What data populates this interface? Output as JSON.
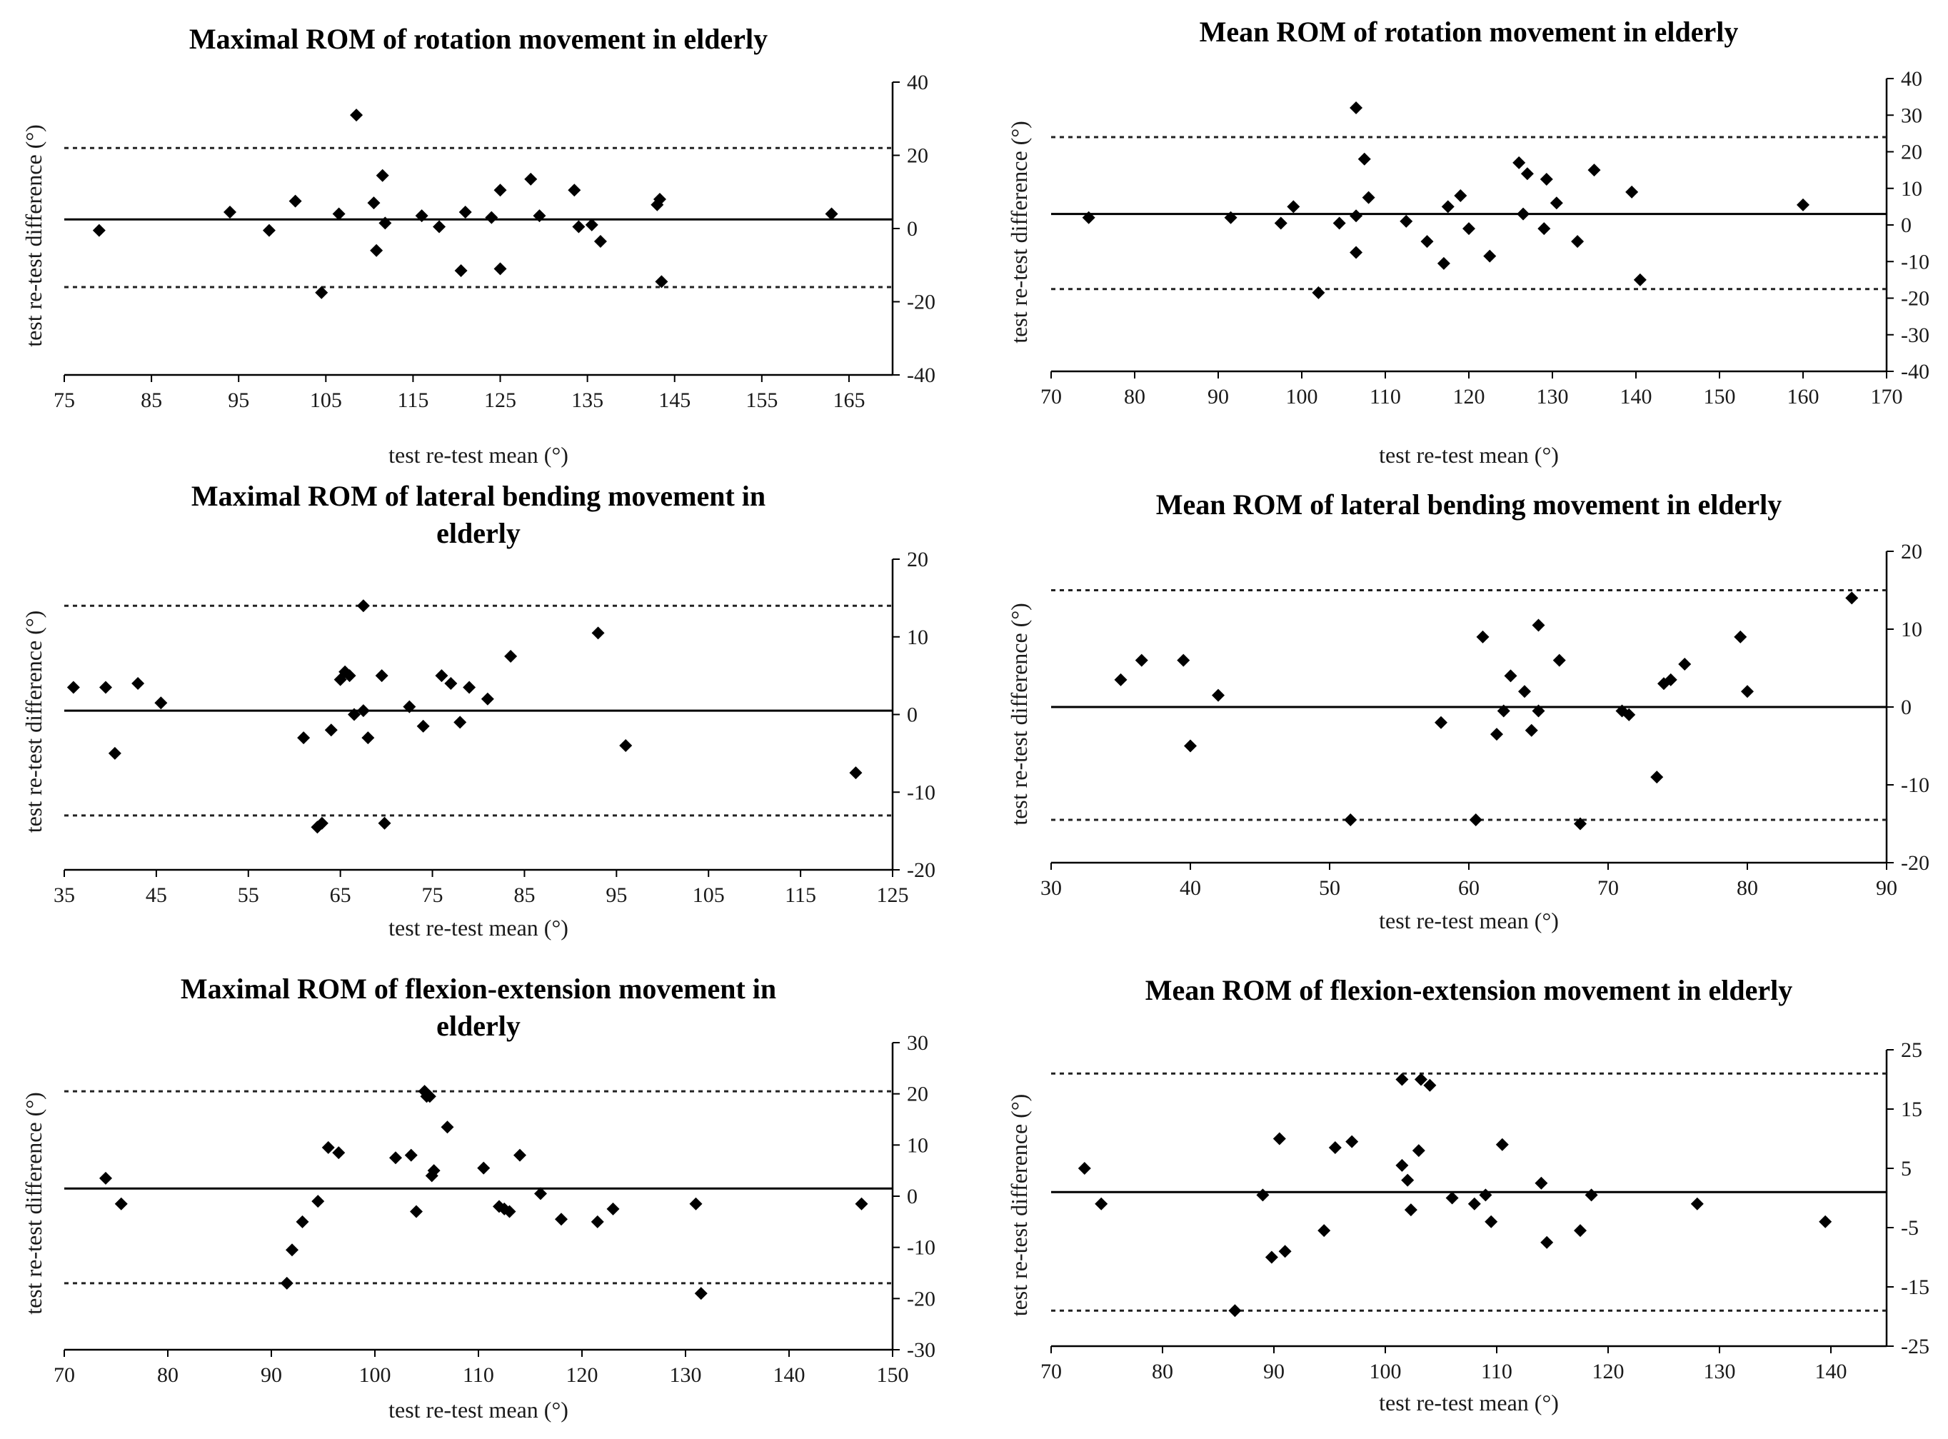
{
  "chart_data": [
    {
      "type": "scatter",
      "title": "Maximal ROM of rotation movement in elderly",
      "xlabel": "test re-test mean (°)",
      "ylabel": "test re-test difference (°)",
      "xlim": [
        75,
        170
      ],
      "ylim": [
        -40,
        40
      ],
      "xticks": [
        "75",
        "85",
        "95",
        "105",
        "115",
        "125",
        "135",
        "145",
        "155",
        "165"
      ],
      "yticks": [
        "40",
        "20",
        "0",
        "-20",
        "-40"
      ],
      "mean_line": 2.5,
      "limits": [
        22,
        -16
      ],
      "points": [
        [
          79,
          -0.5
        ],
        [
          94,
          4.5
        ],
        [
          98.5,
          -0.5
        ],
        [
          101.5,
          7.5
        ],
        [
          104.5,
          -17.5
        ],
        [
          106.5,
          4
        ],
        [
          108.5,
          31
        ],
        [
          110.5,
          7
        ],
        [
          110.8,
          -6
        ],
        [
          111.5,
          14.5
        ],
        [
          111.8,
          1.5
        ],
        [
          116,
          3.5
        ],
        [
          118,
          0.5
        ],
        [
          120.5,
          -11.5
        ],
        [
          121,
          4.5
        ],
        [
          124,
          3
        ],
        [
          125,
          10.5
        ],
        [
          125,
          -11
        ],
        [
          128.5,
          13.5
        ],
        [
          129.5,
          3.5
        ],
        [
          133.5,
          10.5
        ],
        [
          134,
          0.5
        ],
        [
          135.5,
          1
        ],
        [
          136.5,
          -3.5
        ],
        [
          143,
          6.5
        ],
        [
          143.3,
          8
        ],
        [
          143.5,
          -14.5
        ],
        [
          163,
          4
        ]
      ]
    },
    {
      "type": "scatter",
      "title": "Mean ROM of rotation movement in elderly",
      "xlabel": "test re-test mean (°)",
      "ylabel": "test re-test difference (°)",
      "xlim": [
        70,
        170
      ],
      "ylim": [
        -40,
        40
      ],
      "xticks": [
        "70",
        "80",
        "90",
        "100",
        "110",
        "120",
        "130",
        "140",
        "150",
        "160",
        "170"
      ],
      "yticks": [
        "40",
        "30",
        "20",
        "10",
        "0",
        "-10",
        "-20",
        "-30",
        "-40"
      ],
      "mean_line": 3,
      "limits": [
        24,
        -17.5
      ],
      "points": [
        [
          74.5,
          2
        ],
        [
          91.5,
          2
        ],
        [
          97.5,
          0.5
        ],
        [
          99,
          5
        ],
        [
          102,
          -18.5
        ],
        [
          104.5,
          0.5
        ],
        [
          106.5,
          32
        ],
        [
          106.5,
          -7.5
        ],
        [
          106.5,
          2.5
        ],
        [
          107.5,
          18
        ],
        [
          108,
          7.5
        ],
        [
          112.5,
          1
        ],
        [
          115,
          -4.5
        ],
        [
          117,
          -10.5
        ],
        [
          117.5,
          5
        ],
        [
          119,
          8
        ],
        [
          120,
          -1
        ],
        [
          122.5,
          -8.5
        ],
        [
          126,
          17
        ],
        [
          126.5,
          3
        ],
        [
          127,
          14
        ],
        [
          129,
          -1
        ],
        [
          129.3,
          12.5
        ],
        [
          130.5,
          6
        ],
        [
          133,
          -4.5
        ],
        [
          135,
          15
        ],
        [
          139.5,
          9
        ],
        [
          140.5,
          -15
        ],
        [
          160,
          5.5
        ]
      ]
    },
    {
      "type": "scatter",
      "title": "Maximal ROM of lateral bending movement in elderly",
      "xlabel": "test re-test mean (°)",
      "ylabel": "test re-test difference (°)",
      "xlim": [
        35,
        125
      ],
      "ylim": [
        -20,
        20
      ],
      "xticks": [
        "35",
        "45",
        "55",
        "65",
        "75",
        "85",
        "95",
        "105",
        "115",
        "125"
      ],
      "yticks": [
        "20",
        "10",
        "0",
        "-10",
        "-20"
      ],
      "mean_line": 0.5,
      "limits": [
        14,
        -13
      ],
      "points": [
        [
          36,
          3.5
        ],
        [
          39.5,
          3.5
        ],
        [
          40.5,
          -5
        ],
        [
          43,
          4
        ],
        [
          45.5,
          1.5
        ],
        [
          61,
          -3
        ],
        [
          62.5,
          -14.5
        ],
        [
          63,
          -14
        ],
        [
          64,
          -2
        ],
        [
          65,
          4.5
        ],
        [
          65.5,
          5.5
        ],
        [
          66,
          5
        ],
        [
          66.5,
          0
        ],
        [
          67.5,
          14
        ],
        [
          67.5,
          0.5
        ],
        [
          68,
          -3
        ],
        [
          69.5,
          5
        ],
        [
          69.8,
          -14
        ],
        [
          72.5,
          1
        ],
        [
          74,
          -1.5
        ],
        [
          76,
          5
        ],
        [
          77,
          4
        ],
        [
          78,
          -1
        ],
        [
          79,
          3.5
        ],
        [
          81,
          2
        ],
        [
          83.5,
          7.5
        ],
        [
          93,
          10.5
        ],
        [
          96,
          -4
        ],
        [
          121,
          -7.5
        ]
      ]
    },
    {
      "type": "scatter",
      "title": "Mean ROM of lateral bending movement in elderly",
      "xlabel": "test re-test mean (°)",
      "ylabel": "test re-test difference (°)",
      "xlim": [
        30,
        90
      ],
      "ylim": [
        -20,
        20
      ],
      "xticks": [
        "30",
        "40",
        "50",
        "60",
        "70",
        "80",
        "90"
      ],
      "yticks": [
        "20",
        "10",
        "0",
        "-10",
        "-20"
      ],
      "mean_line": 0,
      "limits": [
        15,
        -14.5
      ],
      "points": [
        [
          35,
          3.5
        ],
        [
          36.5,
          6
        ],
        [
          39.5,
          6
        ],
        [
          40,
          -5
        ],
        [
          42,
          1.5
        ],
        [
          51.5,
          -14.5
        ],
        [
          58,
          -2
        ],
        [
          60.5,
          -14.5
        ],
        [
          61,
          9
        ],
        [
          62,
          -3.5
        ],
        [
          62.5,
          -0.5
        ],
        [
          63,
          4
        ],
        [
          64,
          2
        ],
        [
          64.5,
          -3
        ],
        [
          65,
          -0.5
        ],
        [
          65,
          10.5
        ],
        [
          66.5,
          6
        ],
        [
          68,
          -15
        ],
        [
          71,
          -0.5
        ],
        [
          71.5,
          -1
        ],
        [
          73.5,
          -9
        ],
        [
          74,
          3
        ],
        [
          74.5,
          3.5
        ],
        [
          75.5,
          5.5
        ],
        [
          79.5,
          9
        ],
        [
          80,
          2
        ],
        [
          87.5,
          14
        ]
      ]
    },
    {
      "type": "scatter",
      "title": "Maximal ROM of flexion-extension movement in elderly",
      "xlabel": "test re-test mean (°)",
      "ylabel": "test re-test difference (°)",
      "xlim": [
        70,
        150
      ],
      "ylim": [
        -30,
        30
      ],
      "xticks": [
        "70",
        "80",
        "90",
        "100",
        "110",
        "120",
        "130",
        "140",
        "150"
      ],
      "yticks": [
        "30",
        "20",
        "10",
        "0",
        "-10",
        "-20",
        "-30"
      ],
      "mean_line": 1.5,
      "limits": [
        20.5,
        -17
      ],
      "points": [
        [
          74,
          3.5
        ],
        [
          75.5,
          -1.5
        ],
        [
          91.5,
          -17
        ],
        [
          92,
          -10.5
        ],
        [
          93,
          -5
        ],
        [
          94.5,
          -1
        ],
        [
          95.5,
          9.5
        ],
        [
          96.5,
          8.5
        ],
        [
          102,
          7.5
        ],
        [
          103.5,
          8
        ],
        [
          104,
          -3
        ],
        [
          104.8,
          20.5
        ],
        [
          105,
          19.5
        ],
        [
          105.3,
          19.5
        ],
        [
          105.5,
          4
        ],
        [
          105.7,
          5
        ],
        [
          107,
          13.5
        ],
        [
          110.5,
          5.5
        ],
        [
          112,
          -2
        ],
        [
          112.5,
          -2.5
        ],
        [
          113,
          -3
        ],
        [
          114,
          8
        ],
        [
          116,
          0.5
        ],
        [
          118,
          -4.5
        ],
        [
          121.5,
          -5
        ],
        [
          123,
          -2.5
        ],
        [
          131,
          -1.5
        ],
        [
          131.5,
          -19
        ],
        [
          147,
          -1.5
        ]
      ]
    },
    {
      "type": "scatter",
      "title": "Mean ROM of flexion-extension movement in elderly",
      "xlabel": "test re-test mean (°)",
      "ylabel": "test re-test difference (°)",
      "xlim": [
        70,
        145
      ],
      "ylim": [
        -25,
        25
      ],
      "xticks": [
        "70",
        "80",
        "90",
        "100",
        "110",
        "120",
        "130",
        "140"
      ],
      "yticks": [
        "25",
        "15",
        "5",
        "-5",
        "-15",
        "-25"
      ],
      "mean_line": 1,
      "limits": [
        21,
        -19
      ],
      "points": [
        [
          73,
          5
        ],
        [
          74.5,
          -1
        ],
        [
          86.5,
          -19
        ],
        [
          89,
          0.5
        ],
        [
          89.8,
          -10
        ],
        [
          90.5,
          10
        ],
        [
          91,
          -9
        ],
        [
          94.5,
          -5.5
        ],
        [
          95.5,
          8.5
        ],
        [
          97,
          9.5
        ],
        [
          101.5,
          5.5
        ],
        [
          101.5,
          20
        ],
        [
          102,
          3
        ],
        [
          102.3,
          -2
        ],
        [
          103,
          8
        ],
        [
          103.2,
          20
        ],
        [
          104,
          19
        ],
        [
          106,
          0
        ],
        [
          108,
          -1
        ],
        [
          109,
          0.5
        ],
        [
          109.5,
          -4
        ],
        [
          110.5,
          9
        ],
        [
          114,
          2.5
        ],
        [
          114.5,
          -7.5
        ],
        [
          117.5,
          -5.5
        ],
        [
          118.5,
          0.5
        ],
        [
          128,
          -1
        ],
        [
          139.5,
          -4
        ]
      ]
    }
  ]
}
